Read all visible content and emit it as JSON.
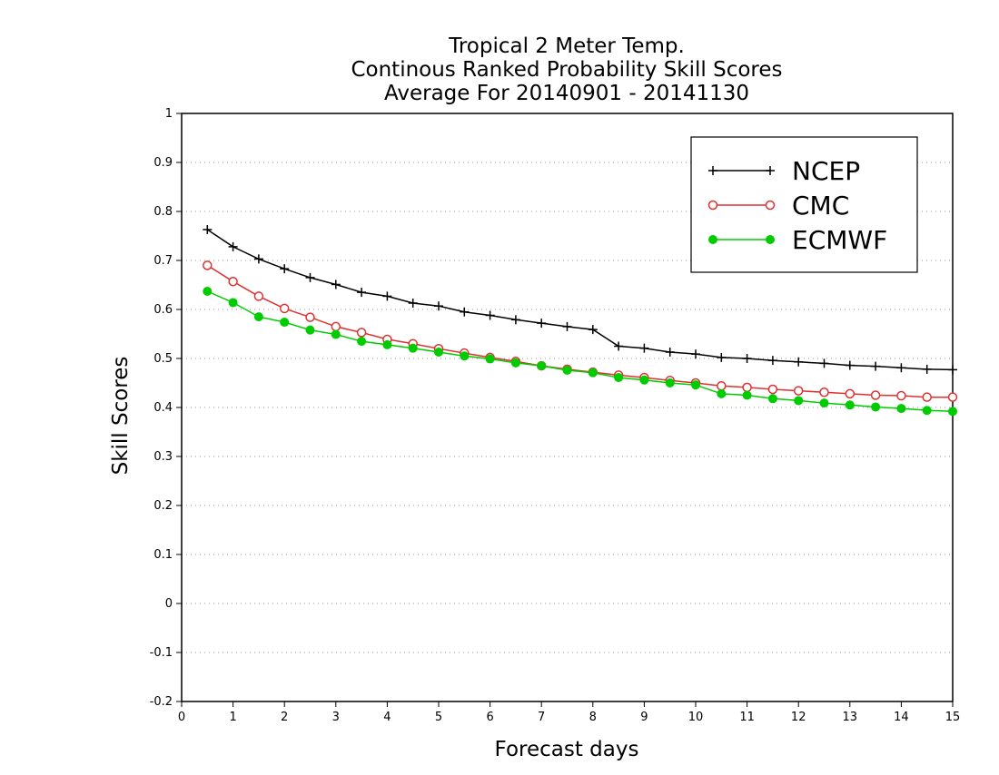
{
  "chart_data": {
    "type": "line",
    "title": [
      "Tropical 2 Meter Temp.",
      "Continous Ranked Probability Skill Scores",
      "Average For 20140901 - 20141130"
    ],
    "xlabel": "Forecast days",
    "ylabel": "Skill Scores",
    "xlim": [
      0,
      15
    ],
    "ylim": [
      -0.2,
      1
    ],
    "xticks": [
      "0",
      "1",
      "2",
      "3",
      "4",
      "5",
      "6",
      "7",
      "8",
      "9",
      "10",
      "11",
      "12",
      "13",
      "14",
      "15"
    ],
    "yticks": [
      "1",
      "0.9",
      "0.8",
      "0.7",
      "0.6",
      "0.5",
      "0.4",
      "0.3",
      "0.2",
      "0.1",
      "0",
      "-0.1",
      "-0.2"
    ],
    "grid": "horizontal dotted",
    "legend_position": "top-right",
    "x": [
      0.5,
      1,
      1.5,
      2,
      2.5,
      3,
      3.5,
      4,
      4.5,
      5,
      5.5,
      6,
      6.5,
      7,
      7.5,
      8,
      8.5,
      9,
      9.5,
      10,
      10.5,
      11,
      11.5,
      12,
      12.5,
      13,
      13.5,
      14,
      14.5,
      15
    ],
    "series": [
      {
        "name": "NCEP",
        "color": "#000000",
        "marker": "plus",
        "values": [
          0.763,
          0.728,
          0.703,
          0.683,
          0.665,
          0.651,
          0.635,
          0.627,
          0.613,
          0.607,
          0.595,
          0.588,
          0.579,
          0.572,
          0.565,
          0.559,
          0.525,
          0.521,
          0.513,
          0.509,
          0.502,
          0.5,
          0.496,
          0.493,
          0.49,
          0.486,
          0.484,
          0.481,
          0.478,
          0.477
        ]
      },
      {
        "name": "CMC",
        "color": "#e03030",
        "marker": "open-circle",
        "values": [
          0.69,
          0.657,
          0.627,
          0.602,
          0.584,
          0.565,
          0.553,
          0.539,
          0.53,
          0.52,
          0.511,
          0.502,
          0.494,
          0.485,
          0.478,
          0.472,
          0.466,
          0.461,
          0.455,
          0.45,
          0.444,
          0.441,
          0.437,
          0.434,
          0.431,
          0.428,
          0.425,
          0.424,
          0.421,
          0.421
        ]
      },
      {
        "name": "ECMWF",
        "color": "#00cc00",
        "marker": "filled-circle",
        "values": [
          0.637,
          0.614,
          0.585,
          0.574,
          0.558,
          0.549,
          0.535,
          0.528,
          0.521,
          0.513,
          0.505,
          0.499,
          0.491,
          0.485,
          0.476,
          0.471,
          0.461,
          0.456,
          0.45,
          0.446,
          0.428,
          0.425,
          0.418,
          0.414,
          0.409,
          0.405,
          0.401,
          0.398,
          0.394,
          0.392
        ]
      }
    ]
  }
}
